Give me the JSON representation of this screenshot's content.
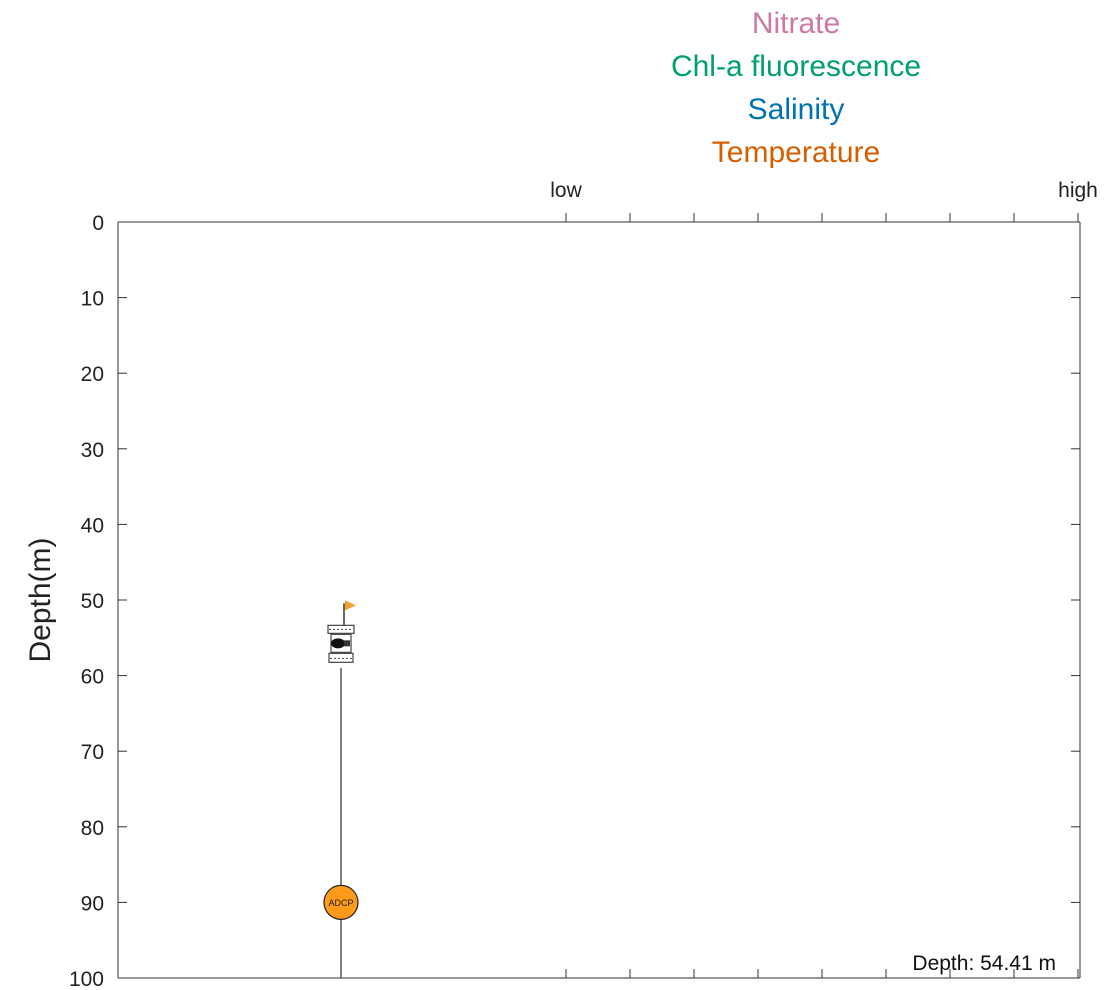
{
  "legend": {
    "items": [
      {
        "label": "Nitrate",
        "color": "#cc79a7"
      },
      {
        "label": "Chl-a fluorescence",
        "color": "#009e73"
      },
      {
        "label": "Salinity",
        "color": "#0072b2"
      },
      {
        "label": "Temperature",
        "color": "#d55e00"
      }
    ]
  },
  "readout": {
    "text": "Depth: 54.41 m"
  },
  "chart_data": {
    "type": "scatter",
    "ylabel": "Depth(m)",
    "ylim": [
      0,
      100
    ],
    "y_reversed": true,
    "y_ticks": [
      0,
      10,
      20,
      30,
      40,
      50,
      60,
      70,
      80,
      90,
      100
    ],
    "top_axis": {
      "low_label": "low",
      "high_label": "high",
      "minor_tick_count": 8
    },
    "grid": false,
    "mooring": {
      "line_top_depth": 59,
      "line_bottom_depth": 100,
      "profiler_depth": 54.41,
      "flag_color": "#f0a030",
      "adcp": {
        "label": "ADCP",
        "depth": 90,
        "color": "#ff9a1a"
      }
    }
  }
}
